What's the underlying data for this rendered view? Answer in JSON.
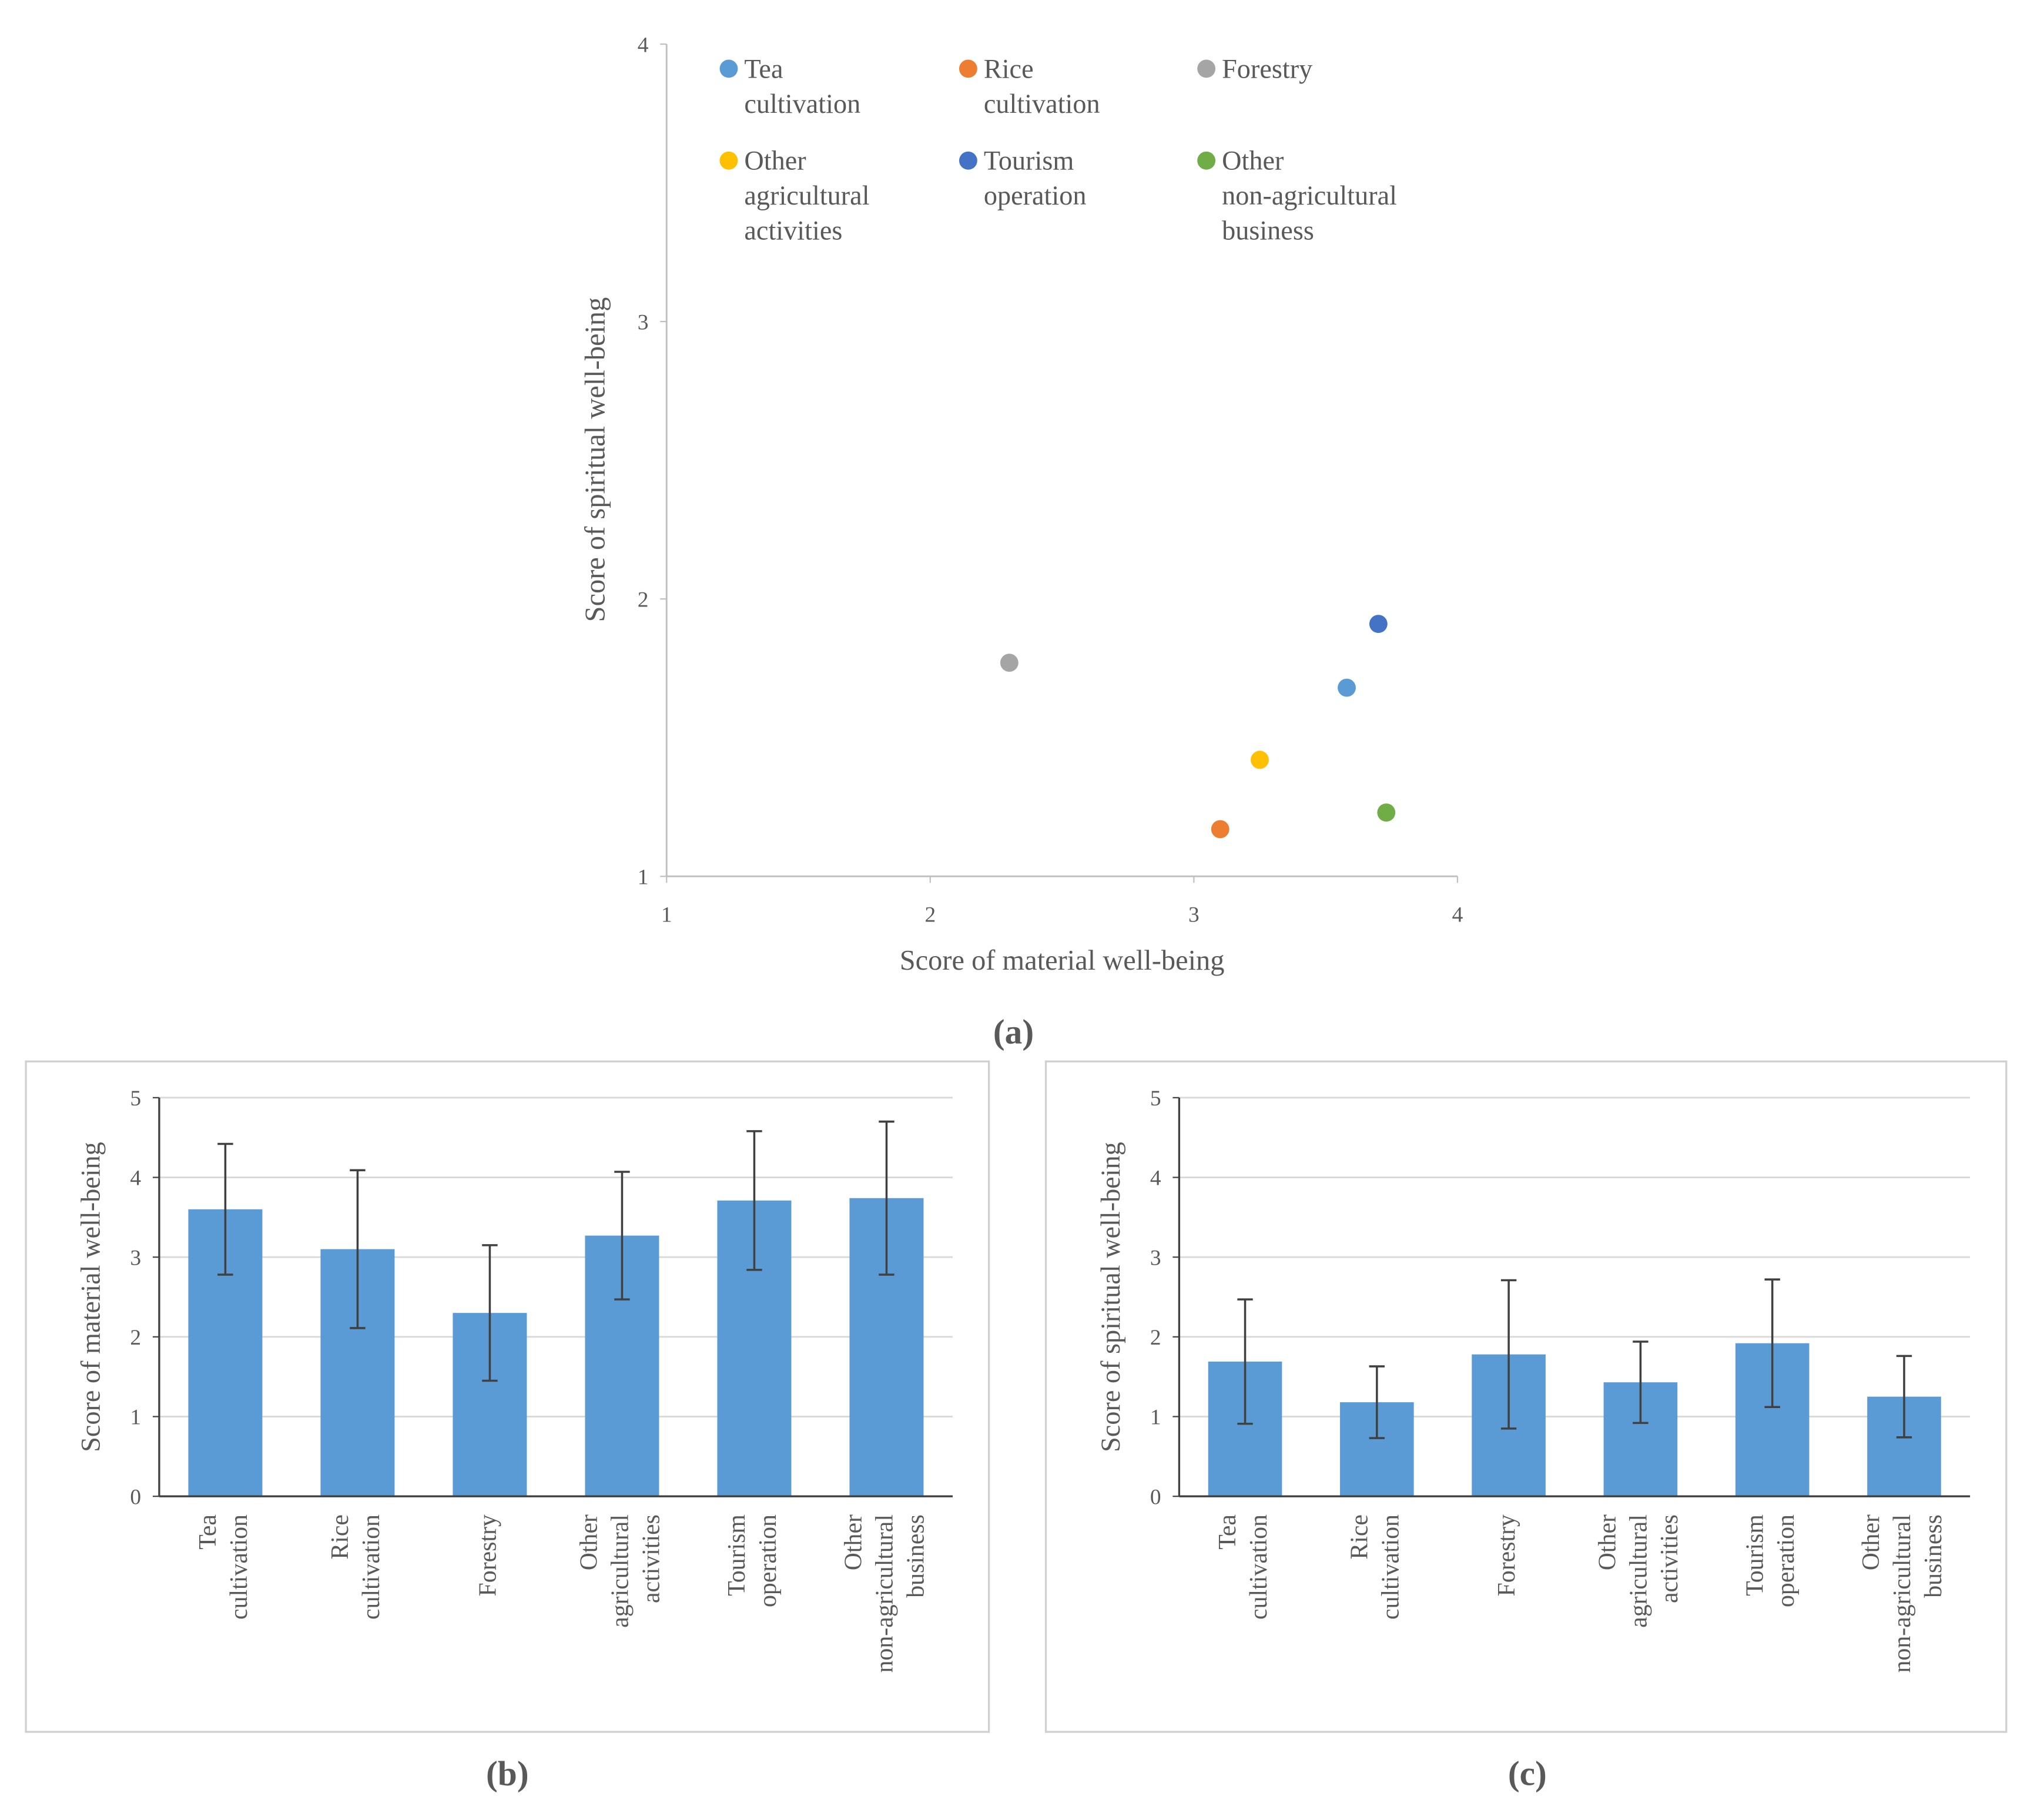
{
  "chart_data": [
    {
      "type": "scatter",
      "caption": "(a)",
      "x_label": "Score of material well-being",
      "y_label": "Score of spiritual well-being",
      "xlim": [
        1,
        4
      ],
      "xticks": [
        1,
        2,
        3,
        4
      ],
      "ylim": [
        1,
        4
      ],
      "yticks": [
        1,
        2,
        3,
        4
      ],
      "grid": false,
      "series": [
        {
          "name": "Tea cultivation",
          "color": "#5b9bd5",
          "x": [
            3.58
          ],
          "values": [
            1.68
          ]
        },
        {
          "name": "Rice cultivation",
          "color": "#ed7d31",
          "x": [
            3.1
          ],
          "values": [
            1.17
          ]
        },
        {
          "name": "Forestry",
          "color": "#a5a5a5",
          "x": [
            2.3
          ],
          "values": [
            1.77
          ]
        },
        {
          "name": "Other agricultural activities",
          "color": "#ffc000",
          "x": [
            3.25
          ],
          "values": [
            1.42
          ]
        },
        {
          "name": "Tourism operation",
          "color": "#4472c4",
          "x": [
            3.7
          ],
          "values": [
            1.91
          ]
        },
        {
          "name": "Other non-agricultural business",
          "color": "#70ad47",
          "x": [
            3.73
          ],
          "values": [
            1.23
          ]
        }
      ]
    },
    {
      "type": "bar",
      "caption": "(b)",
      "y_label": "Score of material well-being",
      "categories": [
        "Tea cultivation",
        "Rice cultivation",
        "Forestry",
        "Other agricultural activities",
        "Tourism operation",
        "Other non-agricultural business"
      ],
      "values": [
        3.6,
        3.1,
        2.3,
        3.27,
        3.71,
        3.74
      ],
      "errors": [
        0.82,
        0.99,
        0.85,
        0.8,
        0.87,
        0.96
      ],
      "color": "#5b9bd5",
      "ylim": [
        0,
        5
      ],
      "yticks": [
        0,
        1,
        2,
        3,
        4,
        5
      ],
      "grid": true
    },
    {
      "type": "bar",
      "caption": "(c)",
      "y_label": "Score of spiritual well-being",
      "categories": [
        "Tea cultivation",
        "Rice cultivation",
        "Forestry",
        "Other agricultural activities",
        "Tourism operation",
        "Other non-agricultural business"
      ],
      "values": [
        1.69,
        1.18,
        1.78,
        1.43,
        1.92,
        1.25
      ],
      "errors": [
        0.78,
        0.45,
        0.93,
        0.51,
        0.8,
        0.51
      ],
      "color": "#5b9bd5",
      "ylim": [
        0,
        5
      ],
      "yticks": [
        0,
        1,
        2,
        3,
        4,
        5
      ],
      "grid": true
    }
  ]
}
